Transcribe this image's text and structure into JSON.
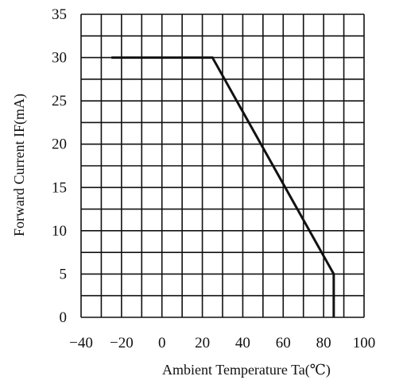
{
  "chart_data": {
    "type": "line",
    "title": "",
    "xlabel": "Ambient Temperature Ta(℃)",
    "ylabel": "Forward Current IF(mA)",
    "xlim": [
      -40,
      100
    ],
    "ylim": [
      0,
      35
    ],
    "x_ticks": [
      -40,
      -20,
      0,
      20,
      40,
      60,
      80,
      100
    ],
    "y_ticks": [
      0,
      5,
      10,
      15,
      20,
      25,
      30,
      35
    ],
    "x_tick_labels": [
      "−40",
      "−20",
      "0",
      "20",
      "40",
      "60",
      "80",
      "100"
    ],
    "y_tick_labels": [
      "0",
      "5",
      "10",
      "15",
      "20",
      "25",
      "30",
      "35"
    ],
    "grid": true,
    "grid_x_step": 10,
    "grid_y_step": 2.5,
    "series": [
      {
        "x": [
          -25,
          25,
          85,
          85
        ],
        "y": [
          30,
          30,
          5,
          0
        ]
      }
    ]
  },
  "colors": {
    "grid": "#111111",
    "line": "#111111",
    "background": "#ffffff"
  }
}
